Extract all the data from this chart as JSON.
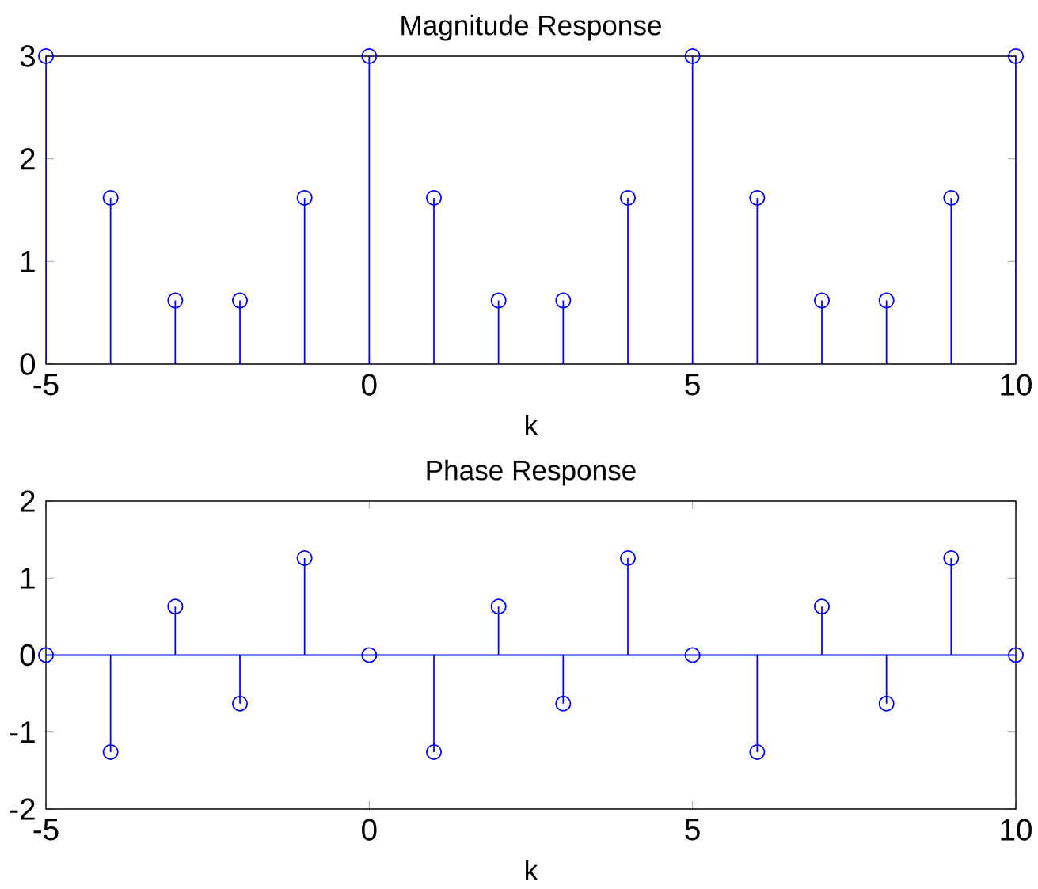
{
  "chart_data": [
    {
      "type": "lollipop",
      "title": "Magnitude Response",
      "xlabel": "k",
      "x": [
        -5,
        -4,
        -3,
        -2,
        -1,
        0,
        1,
        2,
        3,
        4,
        5,
        6,
        7,
        8,
        9,
        10
      ],
      "values": [
        3,
        1.62,
        0.62,
        0.62,
        1.62,
        3,
        1.62,
        0.62,
        0.62,
        1.62,
        3,
        1.62,
        0.62,
        0.62,
        1.62,
        3
      ],
      "color": "#0000ff",
      "marker": "circle",
      "xlim": [
        -5,
        10
      ],
      "xticks": [
        -5,
        0,
        5,
        10
      ],
      "ylim": [
        0,
        3
      ],
      "yticks": [
        0,
        1,
        2,
        3
      ]
    },
    {
      "type": "lollipop",
      "title": "Phase Response",
      "xlabel": "k",
      "x": [
        -5,
        -4,
        -3,
        -2,
        -1,
        0,
        1,
        2,
        3,
        4,
        5,
        6,
        7,
        8,
        9,
        10
      ],
      "values": [
        0,
        -1.26,
        0.63,
        -0.63,
        1.26,
        0,
        -1.26,
        0.63,
        -0.63,
        1.26,
        0,
        -1.26,
        0.63,
        -0.63,
        1.26,
        0
      ],
      "color": "#0000ff",
      "marker": "circle",
      "xlim": [
        -5,
        10
      ],
      "xticks": [
        -5,
        0,
        5,
        10
      ],
      "ylim": [
        -2,
        2
      ],
      "yticks": [
        -2,
        -1,
        0,
        1,
        2
      ],
      "ref_lines": [
        {
          "axis": "y",
          "value": 0,
          "color": "#0000ff"
        }
      ]
    }
  ]
}
